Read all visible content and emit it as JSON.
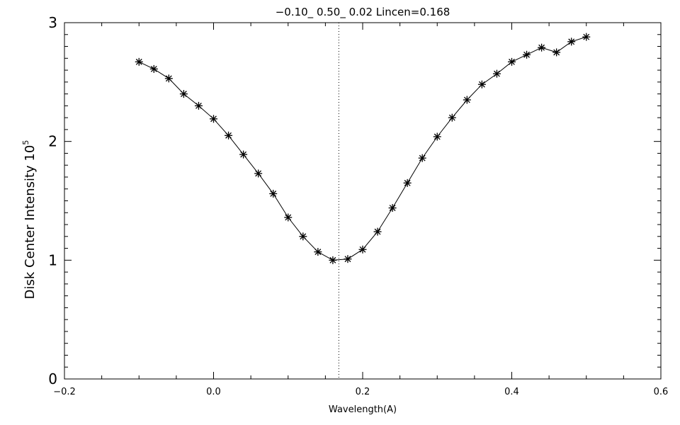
{
  "chart_data": {
    "type": "line",
    "title": "−0.10_ 0.50_ 0.02   Lincen=0.168",
    "xlabel": "Wavelength(A)",
    "ylabel": "Disk Center Intensity 10",
    "ylabel_superscript": "5",
    "xlim": [
      -0.2,
      0.6
    ],
    "ylim": [
      0,
      3
    ],
    "xticks": [
      -0.2,
      0.0,
      0.2,
      0.4,
      0.6
    ],
    "xtick_labels": [
      "−0.2",
      "0.0",
      "0.2",
      "0.4",
      "0.6"
    ],
    "yticks": [
      0,
      1,
      2,
      3
    ],
    "ytick_labels": [
      "0",
      "1",
      "2",
      "3"
    ],
    "reference_line_x": 0.168,
    "series": [
      {
        "marker": "asterisk",
        "x": [
          -0.1,
          -0.08,
          -0.06,
          -0.04,
          -0.02,
          0.0,
          0.02,
          0.04,
          0.06,
          0.08,
          0.1,
          0.12,
          0.14,
          0.16,
          0.18,
          0.2,
          0.22,
          0.24,
          0.26,
          0.28,
          0.3,
          0.32,
          0.34,
          0.36,
          0.38,
          0.4,
          0.42,
          0.44,
          0.46,
          0.48,
          0.5
        ],
        "y": [
          2.67,
          2.61,
          2.53,
          2.4,
          2.3,
          2.19,
          2.05,
          1.89,
          1.73,
          1.56,
          1.36,
          1.2,
          1.07,
          1.0,
          1.01,
          1.09,
          1.24,
          1.44,
          1.65,
          1.86,
          2.04,
          2.2,
          2.35,
          2.48,
          2.57,
          2.67,
          2.73,
          2.79,
          2.75,
          2.84,
          2.88
        ]
      }
    ],
    "colors": {
      "line": "#000000",
      "axes": "#000000",
      "background": "#ffffff"
    }
  }
}
